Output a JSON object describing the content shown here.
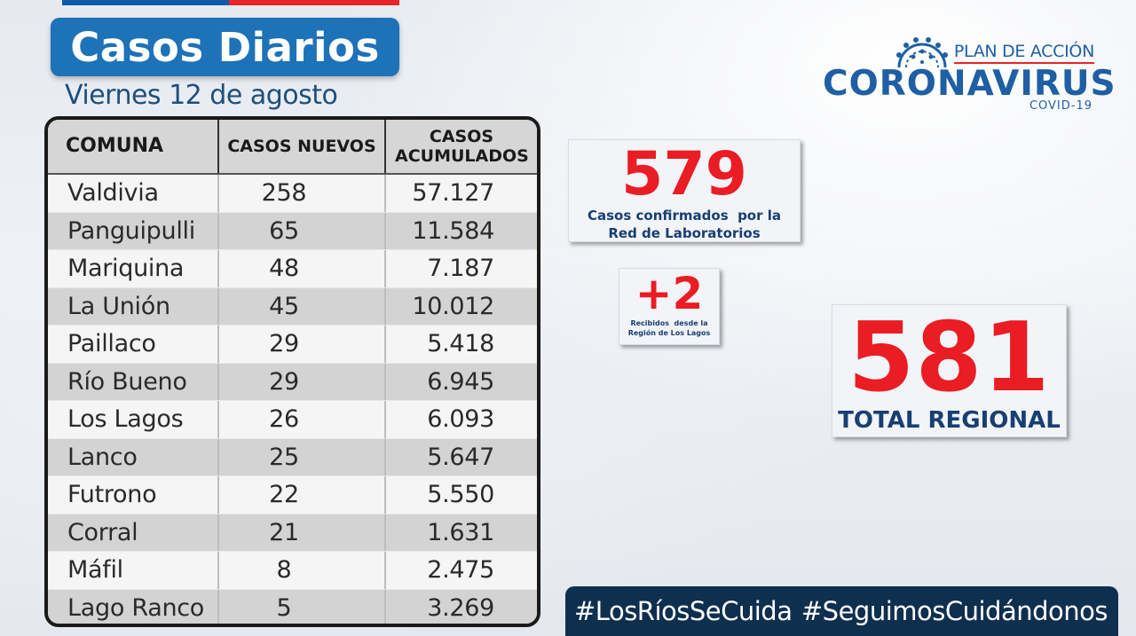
{
  "colors": {
    "title_bg": "#1d72b8",
    "accent_red": "#ea1c24",
    "dark_blue": "#173f73",
    "hashtag_bg": "#0f2f4f"
  },
  "header": {
    "title": "Casos Diarios",
    "date": "Viernes 12 de agosto"
  },
  "logo": {
    "icon": "coronavirus-icon",
    "plan": "PLAN DE ACCIÓN",
    "name": "CORONAVIRUS",
    "sub": "COVID-19"
  },
  "table": {
    "headers": [
      "COMUNA",
      "CASOS NUEVOS",
      "CASOS ACUMULADOS"
    ],
    "rows": [
      [
        "Valdivia",
        "258",
        "57.127"
      ],
      [
        "Panguipulli",
        "65",
        "11.584"
      ],
      [
        "Mariquina",
        "48",
        "7.187"
      ],
      [
        "La Unión",
        "45",
        "10.012"
      ],
      [
        "Paillaco",
        "29",
        "5.418"
      ],
      [
        "Río Bueno",
        "29",
        "6.945"
      ],
      [
        "Los Lagos",
        "26",
        "6.093"
      ],
      [
        "Lanco",
        "25",
        "5.647"
      ],
      [
        "Futrono",
        "22",
        "5.550"
      ],
      [
        "Corral",
        "21",
        "1.631"
      ],
      [
        "Máfil",
        "8",
        "2.475"
      ],
      [
        "Lago Ranco",
        "5",
        "3.269"
      ]
    ]
  },
  "stats": {
    "lab": {
      "value": "579",
      "label_line1": "Casos confirmados  por la",
      "label_line2": "Red de Laboratorios"
    },
    "received": {
      "value": "+2",
      "label_line1": "Recibidos  desde la",
      "label_line2": "Región de Los Lagos"
    },
    "total": {
      "value": "581",
      "label": "TOTAL REGIONAL"
    }
  },
  "hashtags": [
    "#LosRíosSeCuida",
    "#SeguimosCuidándonos"
  ]
}
